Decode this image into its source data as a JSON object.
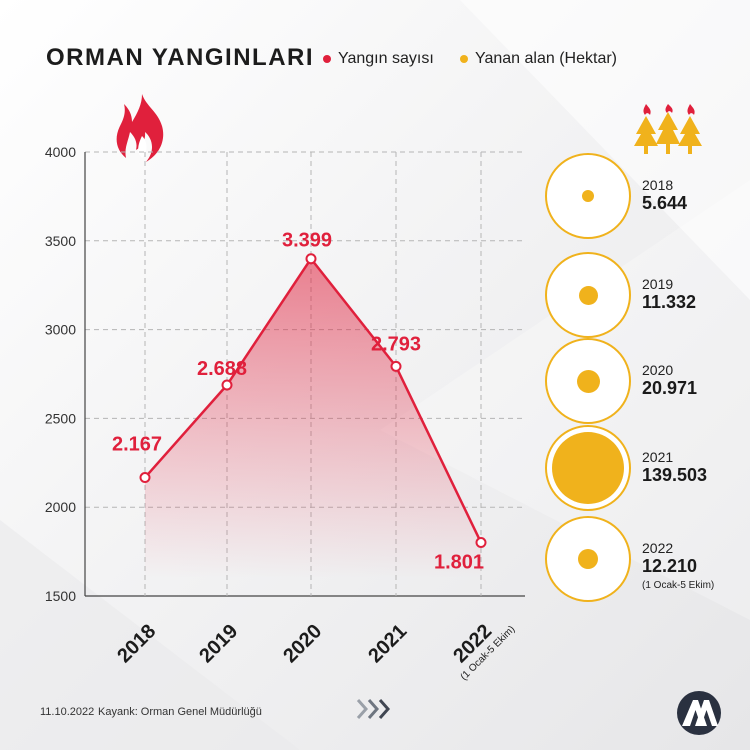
{
  "header": {
    "title": "ORMAN YANGINLARI",
    "legend_fires": "Yangın sayısı",
    "legend_area": "Yanan alan (Hektar)"
  },
  "colors": {
    "fire_red": "#e0203c",
    "area_yellow": "#f0b21c",
    "text_dark": "#1c1c1c",
    "grid": "#b5b5b5"
  },
  "chart_data": {
    "type": "area",
    "categories": [
      "2018",
      "2019",
      "2020",
      "2021",
      "2022"
    ],
    "category_notes": [
      "",
      "",
      "",
      "",
      "(1 Ocak-5 Ekim)"
    ],
    "series": [
      {
        "name": "Yangın sayısı",
        "values": [
          2167,
          2688,
          3399,
          2793,
          1801
        ],
        "labels": [
          "2.167",
          "2.688",
          "3.399",
          "2.793",
          "1.801"
        ]
      }
    ],
    "yticks": [
      1500,
      2000,
      2500,
      3000,
      3500,
      4000
    ],
    "ylim": [
      1500,
      4000
    ],
    "grid": true
  },
  "bubbles": [
    {
      "year": "2018",
      "value": 5644,
      "value_label": "5.644",
      "note": ""
    },
    {
      "year": "2019",
      "value": 11332,
      "value_label": "11.332",
      "note": ""
    },
    {
      "year": "2020",
      "value": 20971,
      "value_label": "20.971",
      "note": ""
    },
    {
      "year": "2021",
      "value": 139503,
      "value_label": "139.503",
      "note": ""
    },
    {
      "year": "2022",
      "value": 12210,
      "value_label": "12.210",
      "note": "(1 Ocak-5 Ekim)"
    }
  ],
  "icons": {
    "fire": "flame-icon",
    "forest": "burning-trees-icon",
    "arrows": "chevrons-right-icon",
    "logo": "aa-logo"
  },
  "footer": {
    "date": "11.10.2022",
    "source": "Kayank: Orman Genel Müdürlüğü"
  }
}
